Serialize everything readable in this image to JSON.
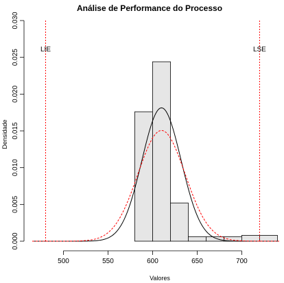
{
  "chart_data": {
    "type": "bar",
    "title": "Análise de Performance do Processo",
    "xlabel": "Valores",
    "ylabel": "Densidade",
    "xlim": [
      465,
      742
    ],
    "ylim": [
      0,
      0.03
    ],
    "x_ticks": [
      500,
      550,
      600,
      650,
      700
    ],
    "y_ticks": [
      0.0,
      0.005,
      0.01,
      0.015,
      0.02,
      0.025,
      0.03
    ],
    "y_tick_labels": [
      "0.000",
      "0.005",
      "0.010",
      "0.015",
      "0.020",
      "0.025",
      "0.030"
    ],
    "bins": [
      {
        "x0": 580,
        "x1": 600,
        "density": 0.0176
      },
      {
        "x0": 600,
        "x1": 620,
        "density": 0.0244
      },
      {
        "x0": 620,
        "x1": 640,
        "density": 0.0052
      },
      {
        "x0": 640,
        "x1": 660,
        "density": 0.0006
      },
      {
        "x0": 660,
        "x1": 680,
        "density": 0.0006
      },
      {
        "x0": 680,
        "x1": 700,
        "density": 0.0006
      },
      {
        "x0": 700,
        "x1": 720,
        "density": 0.0008
      },
      {
        "x0": 720,
        "x1": 740,
        "density": 0.0008
      }
    ],
    "curves": [
      {
        "style": "solid",
        "color": "#000000",
        "mean": 610,
        "sd": 22,
        "x_from": 465,
        "x_to": 742
      },
      {
        "style": "dashed",
        "color": "#ff0000",
        "mean": 610,
        "sd": 26.5,
        "x_from": 465,
        "x_to": 742
      }
    ],
    "spec_limits": [
      {
        "label": "LIE",
        "value": 480,
        "color": "#ff0000"
      },
      {
        "label": "LSE",
        "value": 720,
        "color": "#ff0000"
      }
    ],
    "bar_fill": "#e6e6e6",
    "grid": false,
    "legend": false
  }
}
